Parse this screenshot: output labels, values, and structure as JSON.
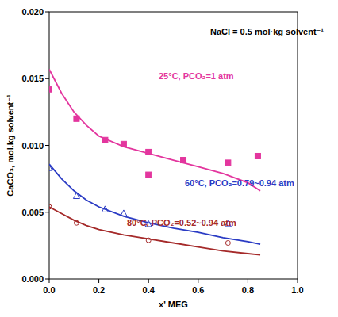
{
  "chart_data": {
    "type": "scatter",
    "annotation": "NaCl = 0.5 mol·kg solvent⁻¹",
    "x_label": "x' MEG",
    "y_label": "CaCO₃, mol.kg solvent⁻¹",
    "xlim": [
      0,
      1.0
    ],
    "xticks": [
      {
        "value": 0,
        "label": "0.0"
      },
      0.2,
      0.4,
      0.6,
      0.8,
      {
        "value": 1.0,
        "label": "1.0"
      }
    ],
    "ylim": [
      0,
      0.02
    ],
    "yticks": [
      {
        "value": 0,
        "label": "0.000"
      },
      {
        "value": 0.005,
        "label": "0.005"
      },
      {
        "value": 0.01,
        "label": "0.010"
      },
      {
        "value": 0.015,
        "label": "0.015"
      },
      {
        "value": 0.02,
        "label": "0.020"
      }
    ],
    "grid": false,
    "series": [
      {
        "name": "25°C, PCO₂=1 atm",
        "type": "scatter",
        "color": "#e3369e",
        "marker": "square",
        "x": [
          0,
          0.11,
          0.225,
          0.3,
          0.4,
          0.4,
          0.54,
          0.72,
          0.84
        ],
        "values": [
          0.0142,
          0.012,
          0.0104,
          0.0101,
          0.0095,
          0.0078,
          0.0089,
          0.0087,
          0.0092
        ]
      },
      {
        "type": "line",
        "color": "#e3369e",
        "line_style": "solid",
        "x": [
          0,
          0.05,
          0.1,
          0.15,
          0.2,
          0.3,
          0.4,
          0.5,
          0.6,
          0.7,
          0.8,
          0.85
        ],
        "values": [
          0.0157,
          0.0139,
          0.0125,
          0.0115,
          0.0107,
          0.0099,
          0.0094,
          0.0089,
          0.0084,
          0.0079,
          0.0072,
          0.0066
        ]
      },
      {
        "name": "60°C, PCO₂=0.79~0.94 atm",
        "type": "scatter",
        "color": "#2a3bc4",
        "marker": "triangle-open",
        "x": [
          0,
          0.11,
          0.225,
          0.3,
          0.4,
          0.72
        ],
        "values": [
          0.0083,
          0.0062,
          0.0052,
          0.0049,
          0.0041,
          0.0041
        ]
      },
      {
        "type": "line",
        "color": "#2a3bc4",
        "line_style": "solid",
        "x": [
          0,
          0.05,
          0.1,
          0.15,
          0.2,
          0.3,
          0.4,
          0.5,
          0.6,
          0.7,
          0.8,
          0.85
        ],
        "values": [
          0.0086,
          0.0075,
          0.0066,
          0.0059,
          0.0054,
          0.0047,
          0.0042,
          0.0038,
          0.0035,
          0.0031,
          0.0028,
          0.0026
        ]
      },
      {
        "name": "80°C, PCO₂=0.52~0.94 atm",
        "type": "scatter",
        "color": "#a52a2a",
        "marker": "circle-open",
        "x": [
          0,
          0.11,
          0.4,
          0.72
        ],
        "values": [
          0.0054,
          0.0042,
          0.0029,
          0.0027
        ]
      },
      {
        "type": "line",
        "color": "#a52a2a",
        "line_style": "solid",
        "x": [
          0,
          0.05,
          0.1,
          0.15,
          0.2,
          0.3,
          0.4,
          0.5,
          0.6,
          0.7,
          0.8,
          0.85
        ],
        "values": [
          0.0054,
          0.0049,
          0.0044,
          0.004,
          0.0037,
          0.0033,
          0.003,
          0.0027,
          0.0024,
          0.0021,
          0.0019,
          0.0018
        ]
      }
    ]
  }
}
